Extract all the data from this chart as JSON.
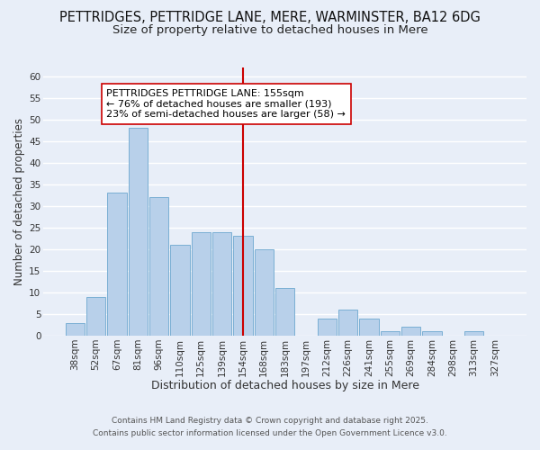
{
  "title": "PETTRIDGES, PETTRIDGE LANE, MERE, WARMINSTER, BA12 6DG",
  "subtitle": "Size of property relative to detached houses in Mere",
  "xlabel": "Distribution of detached houses by size in Mere",
  "ylabel": "Number of detached properties",
  "bar_labels": [
    "38sqm",
    "52sqm",
    "67sqm",
    "81sqm",
    "96sqm",
    "110sqm",
    "125sqm",
    "139sqm",
    "154sqm",
    "168sqm",
    "183sqm",
    "197sqm",
    "212sqm",
    "226sqm",
    "241sqm",
    "255sqm",
    "269sqm",
    "284sqm",
    "298sqm",
    "313sqm",
    "327sqm"
  ],
  "bar_values": [
    3,
    9,
    33,
    48,
    32,
    21,
    24,
    24,
    23,
    20,
    11,
    0,
    4,
    6,
    4,
    1,
    2,
    1,
    0,
    1,
    0
  ],
  "bar_color": "#b8d0ea",
  "bar_edge_color": "#7aafd4",
  "vline_x": 8,
  "vline_color": "#cc0000",
  "annotation_text": "PETTRIDGES PETTRIDGE LANE: 155sqm\n← 76% of detached houses are smaller (193)\n23% of semi-detached houses are larger (58) →",
  "ylim": [
    0,
    62
  ],
  "yticks": [
    0,
    5,
    10,
    15,
    20,
    25,
    30,
    35,
    40,
    45,
    50,
    55,
    60
  ],
  "footer1": "Contains HM Land Registry data © Crown copyright and database right 2025.",
  "footer2": "Contains public sector information licensed under the Open Government Licence v3.0.",
  "background_color": "#e8eef8",
  "grid_color": "#ffffff",
  "title_fontsize": 10.5,
  "subtitle_fontsize": 9.5,
  "xlabel_fontsize": 9,
  "ylabel_fontsize": 8.5,
  "tick_fontsize": 7.5,
  "footer_fontsize": 6.5,
  "annotation_fontsize": 8
}
